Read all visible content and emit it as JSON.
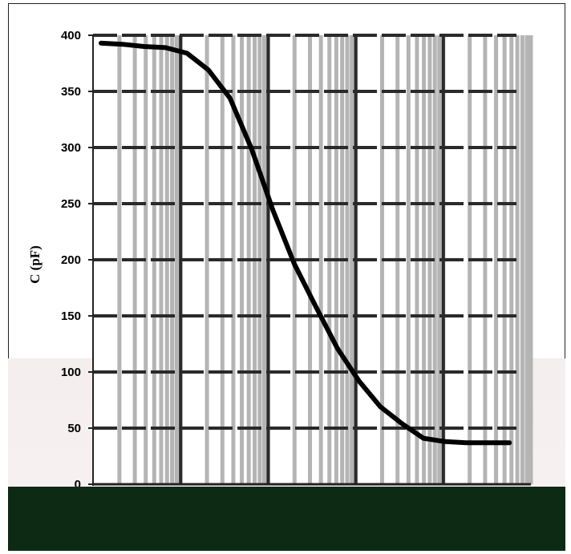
{
  "chart_data": {
    "type": "line",
    "title": "",
    "xlabel": "",
    "ylabel": "C (pF)",
    "ylim": [
      0,
      400
    ],
    "yticks": [
      0,
      50,
      100,
      150,
      200,
      250,
      300,
      350,
      400
    ],
    "x_scale": "log",
    "x_decades": 5,
    "grid": true,
    "colors": {
      "line": "#000000",
      "minor_grid": "#b4b4b4",
      "major_grid": "#2a2a2a",
      "plot_background": "#ffffff"
    },
    "series": [
      {
        "x": [
          0,
          0.25,
          0.5,
          0.75,
          1.0,
          1.25,
          1.5,
          1.75,
          2.0,
          2.25,
          2.5,
          2.75,
          3.0,
          3.25,
          3.5,
          3.75,
          4.0,
          4.25,
          4.5,
          4.75
        ],
        "values": [
          393,
          392,
          390,
          389,
          384,
          369,
          344,
          299,
          244,
          196,
          158,
          121,
          92,
          69,
          54,
          41,
          38,
          37,
          37,
          37
        ]
      }
    ]
  }
}
